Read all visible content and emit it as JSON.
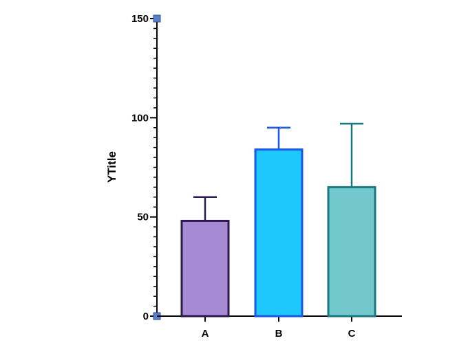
{
  "chart_data": {
    "type": "bar",
    "title": "",
    "xlabel": "",
    "ylabel": "YTitle",
    "ylim": [
      0,
      150
    ],
    "yticks": [
      0,
      50,
      100,
      150
    ],
    "categories": [
      "A",
      "B",
      "C"
    ],
    "values": [
      48,
      84,
      65
    ],
    "error_upper": [
      60,
      95,
      97
    ],
    "fill_colors": [
      "#a68bd4",
      "#1ec8ff",
      "#72c8cc"
    ],
    "edge_colors": [
      "#2c1a4e",
      "#1758e8",
      "#167a80"
    ],
    "grid": false,
    "legend": "none"
  }
}
